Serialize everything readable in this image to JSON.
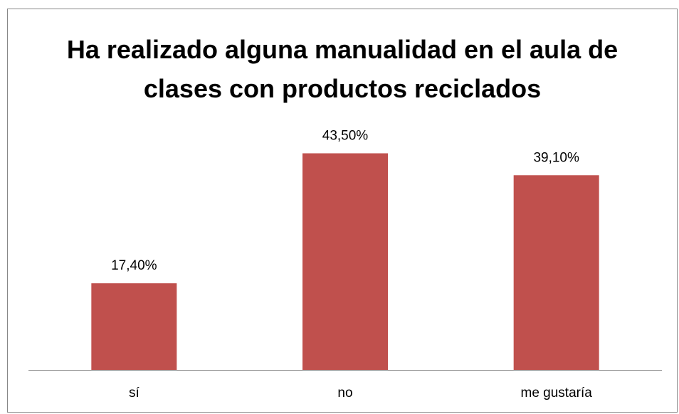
{
  "chart_data": {
    "type": "bar",
    "title": "Ha realizado alguna manualidad en el aula de clases con productos reciclados",
    "categories": [
      "sí",
      "no",
      "me gustaría"
    ],
    "values": [
      17.4,
      43.5,
      39.1
    ],
    "value_labels": [
      "17,40%",
      "43,50%",
      "39,10%"
    ],
    "color": "#c0504d",
    "ylim": [
      0,
      50
    ]
  }
}
